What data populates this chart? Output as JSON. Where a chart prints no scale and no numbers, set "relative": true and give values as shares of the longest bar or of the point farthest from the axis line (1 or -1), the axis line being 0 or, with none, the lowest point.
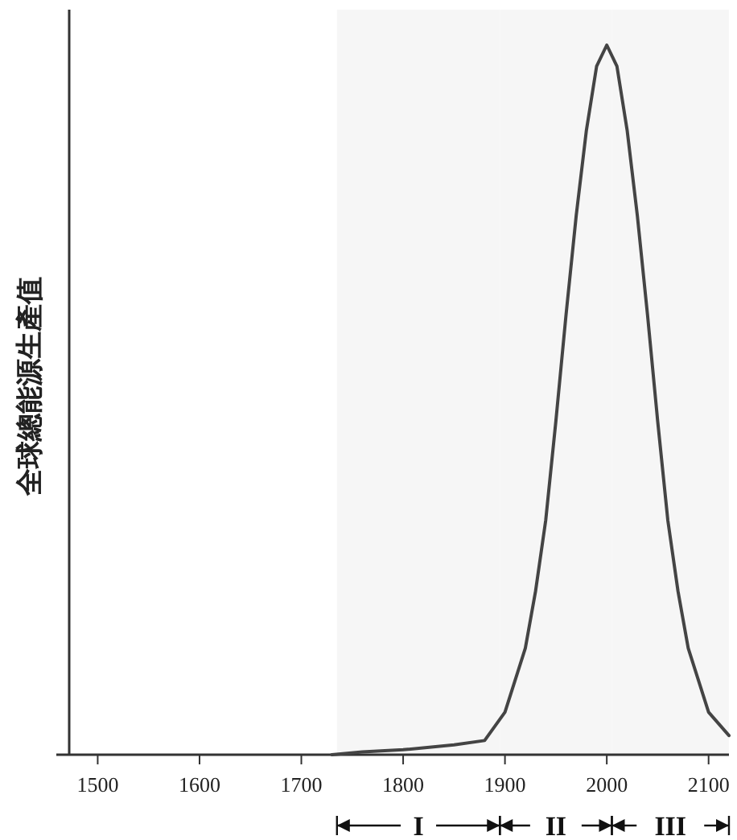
{
  "chart_data": {
    "type": "line",
    "ylabel": "全球總能源生產值",
    "relative": true,
    "x": [
      1730,
      1760,
      1800,
      1850,
      1880,
      1900,
      1920,
      1930,
      1940,
      1950,
      1960,
      1970,
      1980,
      1990,
      2000,
      2010,
      2020,
      2030,
      2040,
      2050,
      2060,
      2070,
      2080,
      2100,
      2120
    ],
    "series": [
      {
        "color": "#444444",
        "values": [
          0,
          0.004,
          0.007,
          0.014,
          0.02,
          0.06,
          0.15,
          0.23,
          0.33,
          0.47,
          0.62,
          0.76,
          0.88,
          0.97,
          1,
          0.97,
          0.88,
          0.76,
          0.62,
          0.47,
          0.33,
          0.23,
          0.15,
          0.06,
          0.027
        ]
      }
    ],
    "xlim": [
      1472,
      2120
    ],
    "xticks": [
      1500,
      1600,
      1700,
      1800,
      1900,
      2000,
      2100
    ],
    "bands": [
      {
        "axis": "x",
        "from": 1735,
        "to": 1895,
        "label": "I",
        "color": "#f6f6f6"
      },
      {
        "axis": "x",
        "from": 1895,
        "to": 2005,
        "label": "II",
        "color": "#f6f6f6"
      },
      {
        "axis": "x",
        "from": 2005,
        "to": 2120,
        "label": "III",
        "color": "#f6f6f6"
      }
    ],
    "marker": "none",
    "line_style": "solid"
  }
}
